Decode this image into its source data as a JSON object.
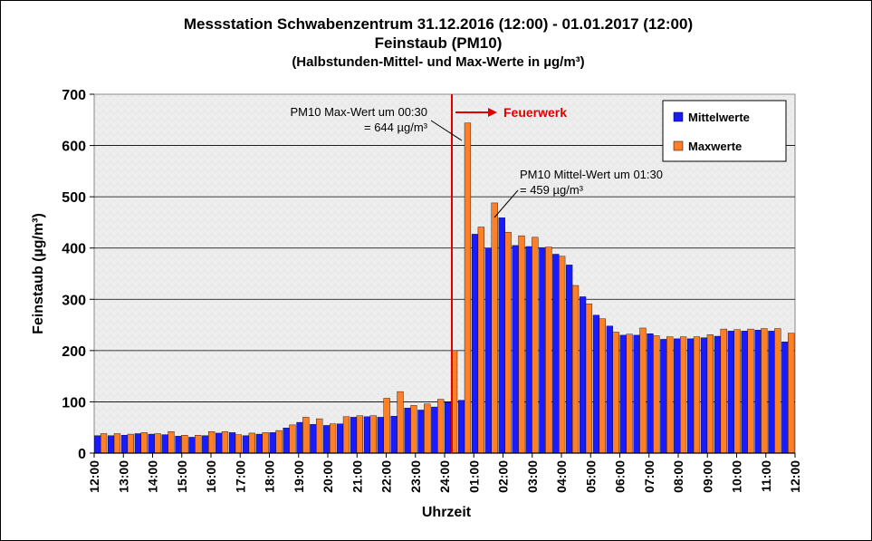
{
  "chart_data": {
    "type": "bar",
    "title": "Messstation Schwabenzentrum 31.12.2016 (12:00) - 01.01.2017 (12:00)",
    "subtitle": "Feinstaub (PM10)",
    "subtitle2": "(Halbstunden-Mittel- und Max-Werte in µg/m³)",
    "xlabel": "Uhrzeit",
    "ylabel": "Feinstaub (µg/m³)",
    "ylim": [
      0,
      700
    ],
    "yticks": [
      "0",
      "100",
      "200",
      "300",
      "400",
      "500",
      "600",
      "700"
    ],
    "grid": true,
    "legend_position": "top-right",
    "xtick_labels": [
      "12:00",
      "13:00",
      "14:00",
      "15:00",
      "16:00",
      "17:00",
      "18:00",
      "19:00",
      "20:00",
      "21:00",
      "22:00",
      "23:00",
      "24:00",
      "01:00",
      "02:00",
      "03:00",
      "04:00",
      "05:00",
      "06:00",
      "07:00",
      "08:00",
      "09:00",
      "10:00",
      "11:00",
      "12:00"
    ],
    "series": [
      {
        "name": "Mittelwerte",
        "color": "#1a1aff",
        "values": [
          34,
          34,
          35,
          38,
          37,
          36,
          33,
          31,
          34,
          39,
          40,
          34,
          37,
          40,
          49,
          60,
          56,
          54,
          57,
          70,
          71,
          70,
          72,
          88,
          84,
          90,
          99,
          103,
          427,
          400,
          459,
          405,
          403,
          401,
          388,
          367,
          305,
          269,
          248,
          230,
          230,
          233,
          222,
          223,
          223,
          225,
          228,
          238,
          238,
          240,
          238,
          217
        ]
      },
      {
        "name": "Maxwerte",
        "color": "#ff7f27",
        "values": [
          38,
          38,
          37,
          40,
          38,
          42,
          35,
          35,
          42,
          42,
          36,
          39,
          40,
          44,
          55,
          70,
          67,
          57,
          71,
          73,
          73,
          107,
          120,
          93,
          96,
          105,
          200,
          644,
          441,
          488,
          431,
          424,
          421,
          402,
          384,
          327,
          291,
          262,
          236,
          232,
          244,
          229,
          227,
          227,
          227,
          231,
          242,
          241,
          242,
          243,
          243,
          234
        ]
      }
    ],
    "annotations": {
      "event_label": "Feuerwerk",
      "max_note_line1": "PM10 Max-Wert um 00:30",
      "max_note_line2": "= 644 µg/m³",
      "mean_note_line1": "PM10 Mittel-Wert um 01:30",
      "mean_note_line2": "= 459 µg/m³",
      "colors": {
        "event_line": "#e00000"
      }
    }
  }
}
